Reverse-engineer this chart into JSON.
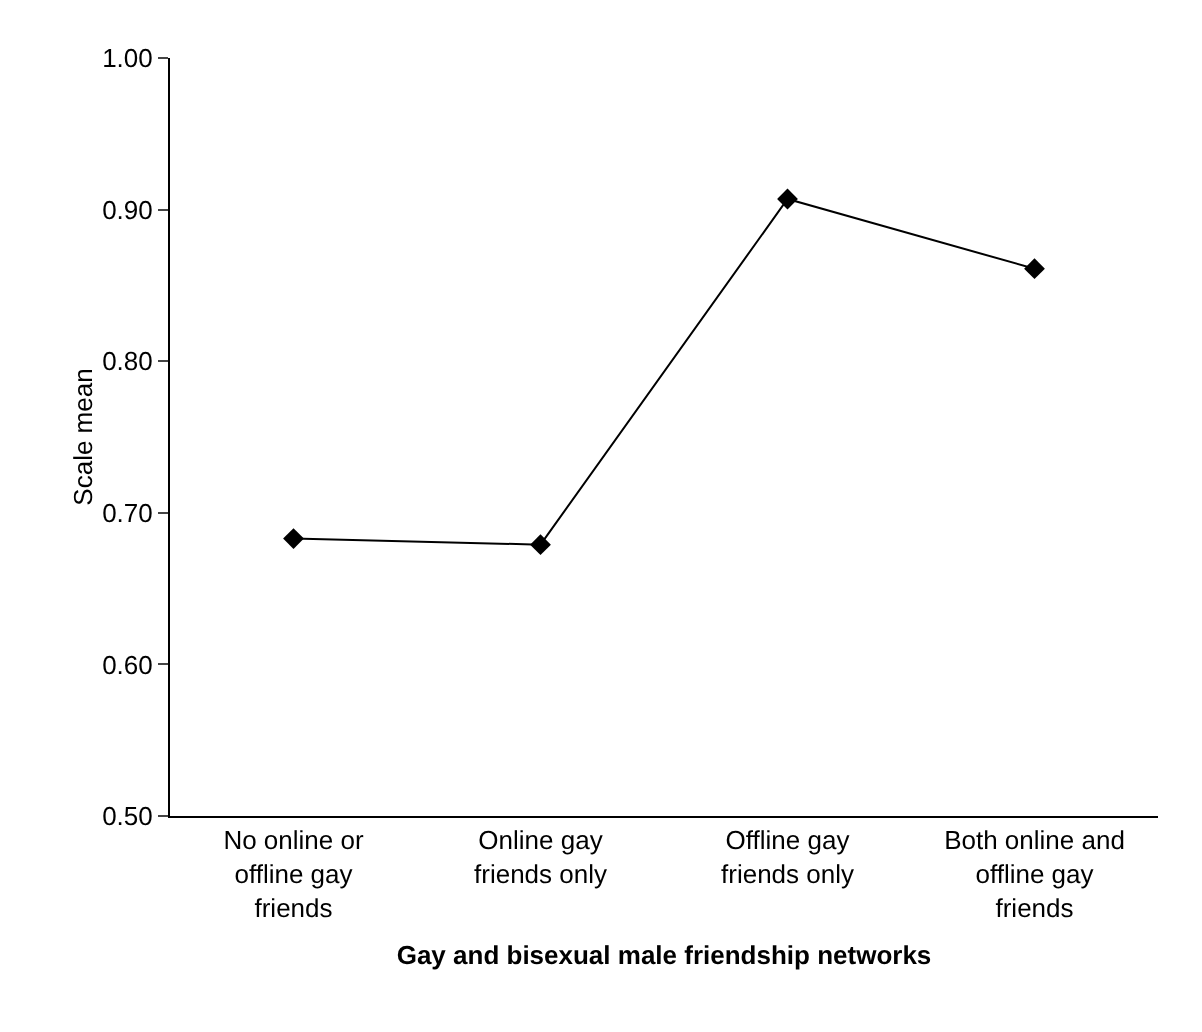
{
  "chart_data": {
    "type": "line",
    "xlabel": "Gay and bisexual male friendship networks",
    "ylabel": "Scale mean",
    "categories": [
      "No online or\noffline gay\nfriends",
      "Online gay\nfriends only",
      "Offline gay\nfriends only",
      "Both online and\noffline gay\nfriends"
    ],
    "series": [
      {
        "color": "#000000",
        "values": [
          0.683,
          0.679,
          0.907,
          0.861
        ]
      }
    ],
    "ylim": [
      0.5,
      1.0
    ],
    "yticks": [
      {
        "value": 0.5,
        "label": "0.50"
      },
      {
        "value": 0.6,
        "label": "0.60"
      },
      {
        "value": 0.7,
        "label": "0.70"
      },
      {
        "value": 0.8,
        "label": "0.80"
      },
      {
        "value": 0.9,
        "label": "0.90"
      },
      {
        "value": 1.0,
        "label": "1.00"
      }
    ],
    "marker": "diamond",
    "line_style": "solid"
  }
}
